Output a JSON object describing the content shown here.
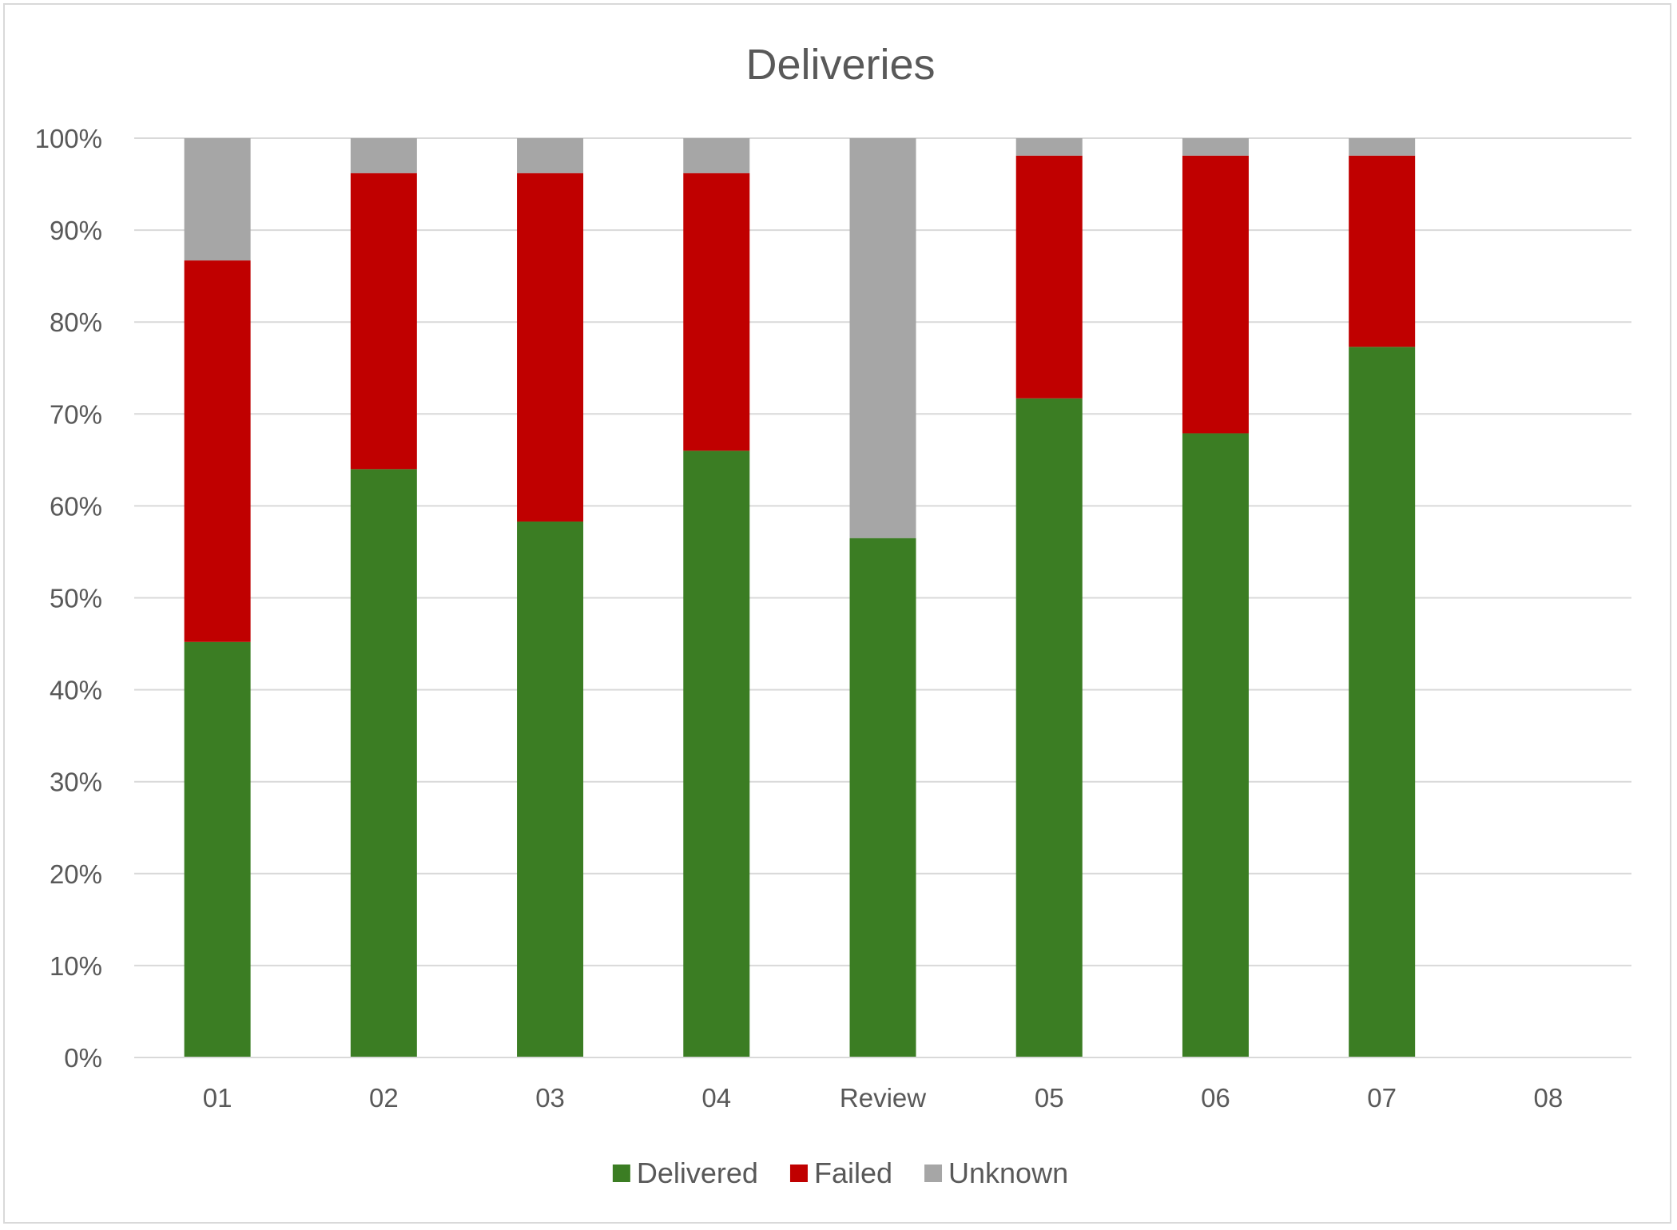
{
  "chart_data": {
    "type": "bar",
    "stacked": true,
    "title": "Deliveries",
    "xlabel": "",
    "ylabel": "",
    "ylim": [
      0,
      1
    ],
    "y_ticks": [
      0,
      0.1,
      0.2,
      0.3,
      0.4,
      0.5,
      0.6,
      0.7,
      0.8,
      0.9,
      1.0
    ],
    "y_tick_labels": [
      "0%",
      "10%",
      "20%",
      "30%",
      "40%",
      "50%",
      "60%",
      "70%",
      "80%",
      "90%",
      "100%"
    ],
    "categories": [
      "01",
      "02",
      "03",
      "04",
      "Review",
      "05",
      "06",
      "07",
      "08"
    ],
    "series": [
      {
        "name": "Delivered",
        "color": "#3b7d23",
        "values": [
          0.452,
          0.64,
          0.583,
          0.66,
          0.565,
          0.717,
          0.679,
          0.773,
          0
        ]
      },
      {
        "name": "Failed",
        "color": "#c00000",
        "values": [
          0.415,
          0.322,
          0.379,
          0.302,
          0,
          0.264,
          0.302,
          0.208,
          0
        ]
      },
      {
        "name": "Unknown",
        "color": "#a6a6a6",
        "values": [
          0.133,
          0.038,
          0.038,
          0.038,
          0.435,
          0.019,
          0.019,
          0.019,
          0
        ]
      }
    ],
    "grid": true,
    "gridline_color": "#d9d9d9",
    "legend_position": "bottom"
  }
}
